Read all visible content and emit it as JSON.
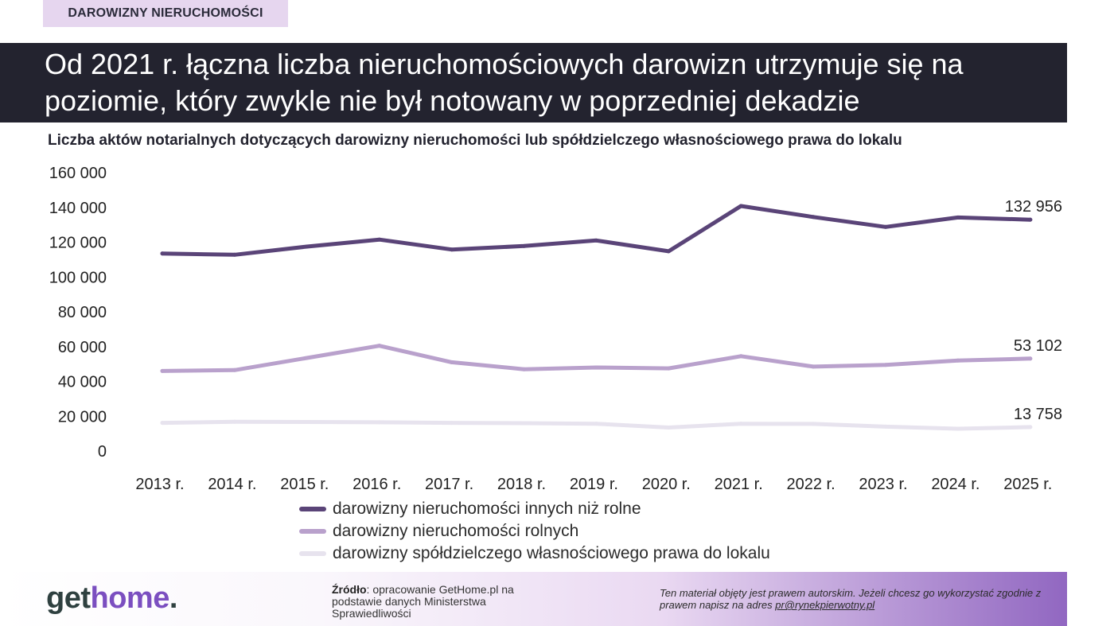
{
  "section_tag": "DAROWIZNY NIERUCHOMOŚCI",
  "headline": "Od 2021 r. łączna liczba nieruchomościowych darowizn utrzymuje się na poziomie, który zwykle nie był notowany w poprzedniej dekadzie",
  "footer": {
    "logo_part1": "get",
    "logo_part2": "home",
    "logo_dot": ".",
    "source_label": "Źródło",
    "source_text": ": opracowanie GetHome.pl na podstawie danych Ministerstwa Sprawiedliwości",
    "copyright_text": "Ten materiał objęty jest prawem autorskim. Jeżeli chcesz go wykorzystać zgodnie z prawem napisz na adres ",
    "copyright_email": "pr@rynekpierwotny.pl"
  },
  "chart_data": {
    "type": "line",
    "title": "Liczba aktów notarialnych dotyczących darowizny nieruchomości lub spółdzielczego własnościowego prawa do lokalu",
    "categories": [
      "2013 r.",
      "2014 r.",
      "2015 r.",
      "2016 r.",
      "2017 r.",
      "2018 r.",
      "2019 r.",
      "2020 r.",
      "2021 r.",
      "2022 r.",
      "2023 r.",
      "2024 r.",
      "2025 r."
    ],
    "ylim": [
      0,
      160000
    ],
    "yticks": [
      "0",
      "20 000",
      "40 000",
      "60 000",
      "80 000",
      "100 000",
      "120 000",
      "140 000",
      "160 000"
    ],
    "grid": false,
    "legend_position": "bottom",
    "series": [
      {
        "name": "darowizny nieruchomości innych niż rolne",
        "color": "#5a4478",
        "values": [
          113500,
          112800,
          117500,
          121500,
          115800,
          117800,
          121000,
          114800,
          140800,
          134500,
          128800,
          134200,
          132956
        ],
        "end_label": "132 956"
      },
      {
        "name": "darowizny nieruchomości rolnych",
        "color": "#b9a1cc",
        "values": [
          46000,
          46500,
          53500,
          60500,
          51000,
          47000,
          48000,
          47500,
          54500,
          48500,
          49500,
          52000,
          53102
        ],
        "end_label": "53 102"
      },
      {
        "name": "darowizny spółdzielczego własnościowego prawa do lokalu",
        "color": "#e7e3ee",
        "values": [
          16200,
          16800,
          16700,
          16500,
          16200,
          16000,
          15700,
          13500,
          15700,
          15600,
          14000,
          12800,
          13758
        ],
        "end_label": "13 758"
      }
    ]
  }
}
